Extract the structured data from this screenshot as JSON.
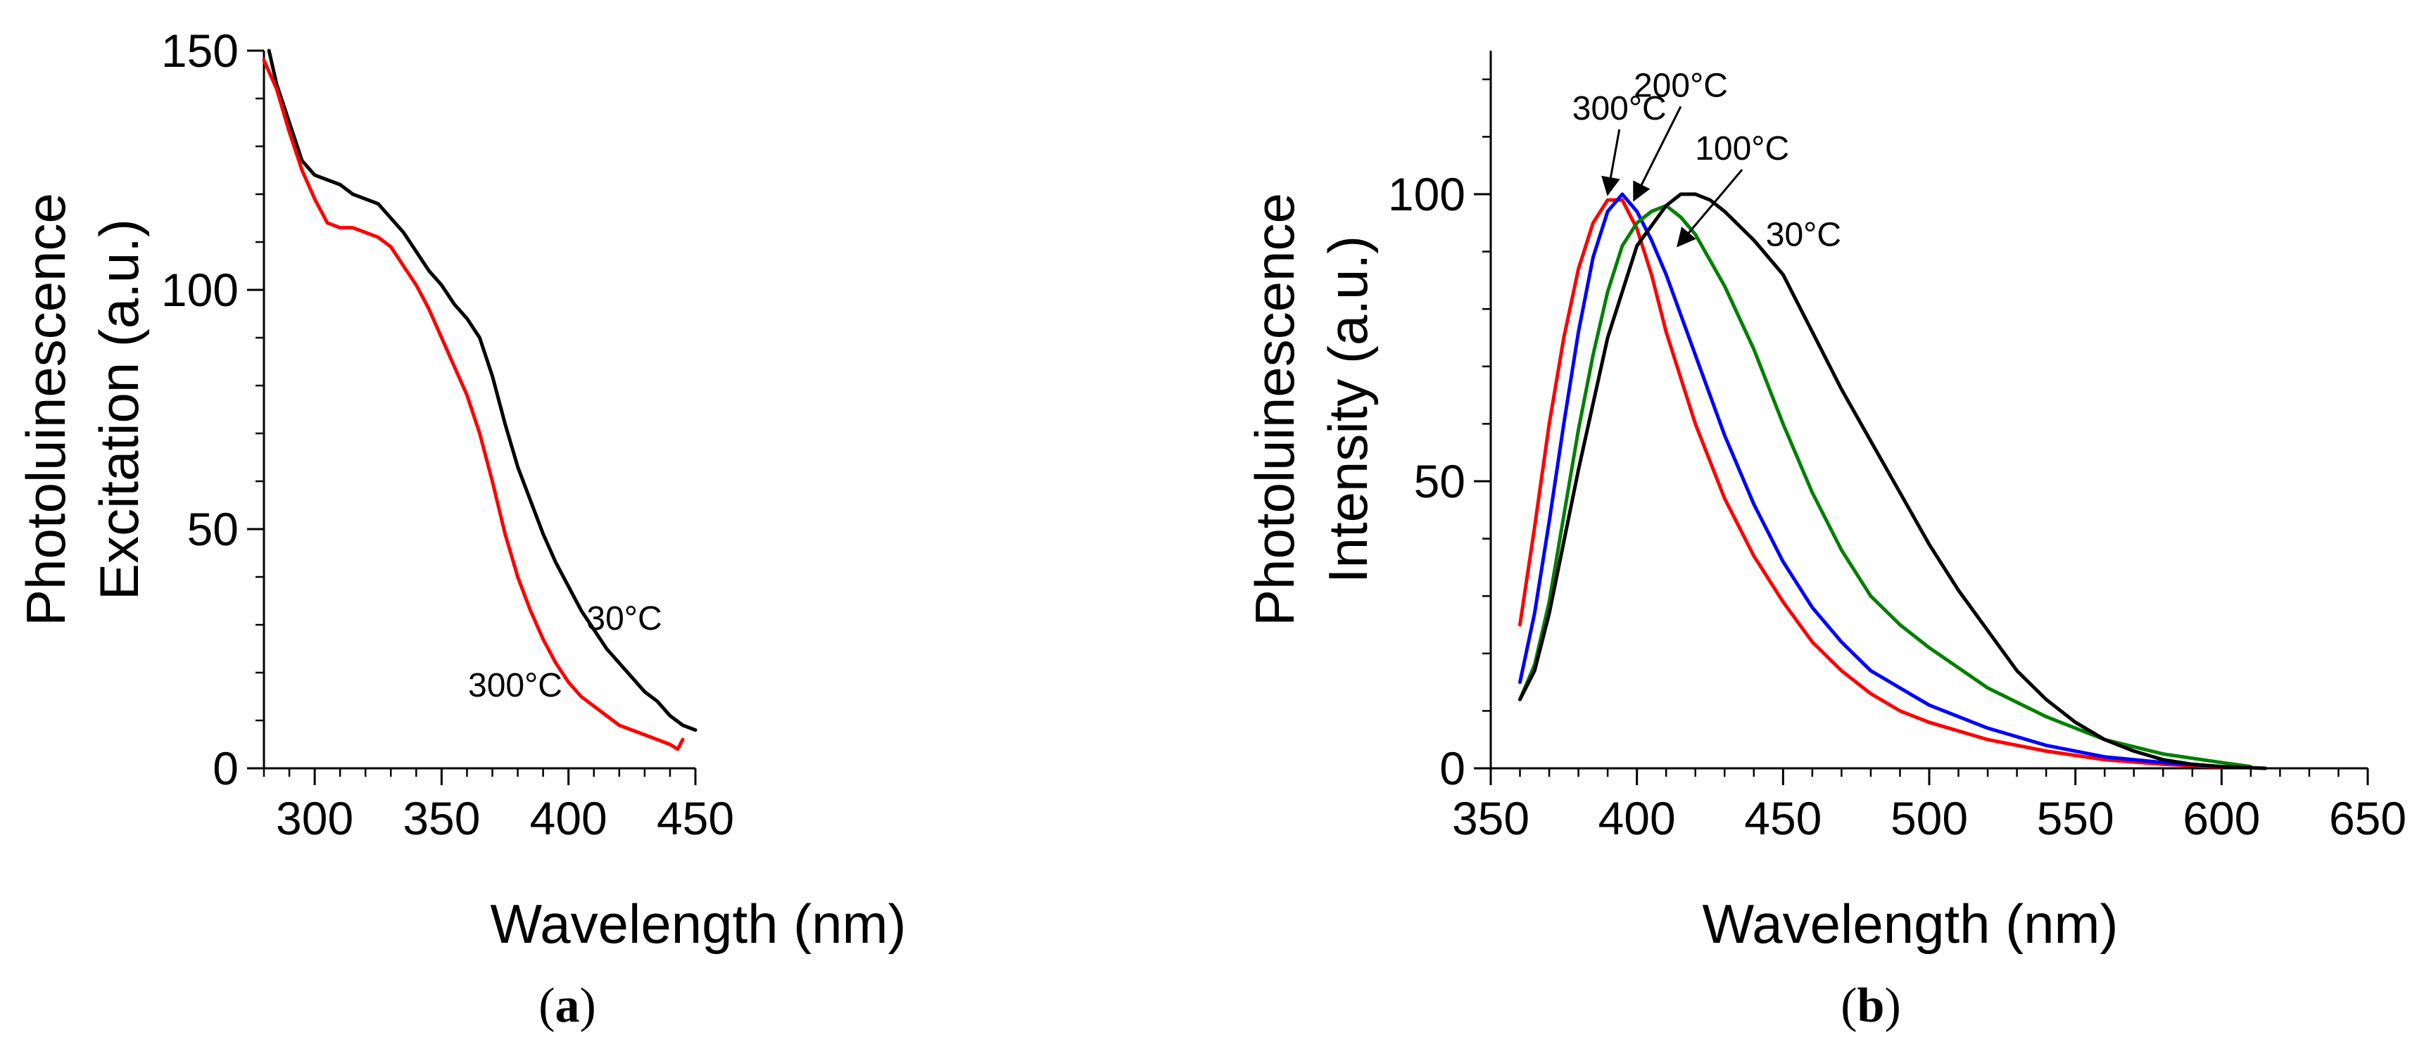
{
  "chart_data": [
    {
      "type": "line",
      "panel_label": "a",
      "xlabel": "Wavelength (nm)",
      "ylabel_line1": "Photoluinescence",
      "ylabel_line2": "Excitation (a.u.)",
      "xlim": [
        280,
        450
      ],
      "ylim": [
        0,
        150
      ],
      "xticks": [
        300,
        350,
        400,
        450
      ],
      "yticks": [
        0,
        50,
        100,
        150
      ],
      "grid": false,
      "series": [
        {
          "name": "30°C",
          "color": "#000000",
          "x": [
            282,
            285,
            290,
            295,
            300,
            305,
            310,
            315,
            320,
            325,
            330,
            335,
            340,
            345,
            350,
            355,
            360,
            365,
            370,
            375,
            380,
            385,
            390,
            395,
            400,
            405,
            410,
            415,
            420,
            425,
            430,
            435,
            440,
            445,
            450
          ],
          "y": [
            150,
            143,
            135,
            127,
            124,
            123,
            122,
            120,
            119,
            118,
            115,
            112,
            108,
            104,
            101,
            97,
            94,
            90,
            82,
            72,
            63,
            56,
            49,
            43,
            38,
            33,
            29,
            25,
            22,
            19,
            16,
            14,
            11,
            9,
            8
          ]
        },
        {
          "name": "300°C",
          "color": "#ff0000",
          "x": [
            280,
            285,
            290,
            295,
            300,
            305,
            310,
            315,
            320,
            325,
            330,
            335,
            340,
            345,
            350,
            355,
            360,
            365,
            370,
            375,
            380,
            385,
            390,
            395,
            400,
            405,
            410,
            415,
            420,
            425,
            430,
            435,
            440,
            443,
            445
          ],
          "y": [
            148,
            142,
            133,
            125,
            119,
            114,
            113,
            113,
            112,
            111,
            109,
            105,
            101,
            96,
            90,
            84,
            78,
            70,
            60,
            49,
            40,
            33,
            27,
            22,
            18,
            15,
            13,
            11,
            9,
            8,
            7,
            6,
            5,
            4,
            6
          ]
        }
      ],
      "annotations": [
        {
          "text": "30°C",
          "x": 422,
          "y": 29
        },
        {
          "text": "300°C",
          "x": 379,
          "y": 15
        }
      ]
    },
    {
      "type": "line",
      "panel_label": "b",
      "xlabel": "Wavelength (nm)",
      "ylabel_line1": "Photoluinescence",
      "ylabel_line2": "Intensity (a.u.)",
      "xlim": [
        350,
        650
      ],
      "ylim": [
        0,
        125
      ],
      "xticks": [
        350,
        400,
        450,
        500,
        550,
        600,
        650
      ],
      "yticks": [
        0,
        50,
        100
      ],
      "grid": false,
      "series": [
        {
          "name": "300°C",
          "color": "#ff0000",
          "x": [
            360,
            365,
            370,
            375,
            380,
            385,
            390,
            395,
            400,
            405,
            410,
            420,
            430,
            440,
            450,
            460,
            470,
            480,
            490,
            500,
            520,
            540,
            560,
            580,
            600
          ],
          "y": [
            25,
            42,
            60,
            75,
            87,
            95,
            99,
            99,
            94,
            86,
            76,
            60,
            47,
            37,
            29,
            22,
            17,
            13,
            10,
            8,
            5,
            3,
            1.5,
            0.7,
            0.2
          ]
        },
        {
          "name": "200°C",
          "color": "#0000ff",
          "x": [
            360,
            365,
            370,
            375,
            380,
            385,
            390,
            395,
            400,
            405,
            410,
            420,
            430,
            440,
            450,
            460,
            470,
            480,
            490,
            500,
            520,
            540,
            560,
            580,
            600
          ],
          "y": [
            15,
            27,
            43,
            60,
            76,
            89,
            97,
            100,
            97,
            92,
            86,
            72,
            58,
            46,
            36,
            28,
            22,
            17,
            14,
            11,
            7,
            4,
            2,
            1,
            0.3
          ]
        },
        {
          "name": "100°C",
          "color": "#008000",
          "x": [
            360,
            365,
            370,
            375,
            380,
            385,
            390,
            395,
            400,
            405,
            410,
            415,
            420,
            430,
            440,
            450,
            460,
            470,
            480,
            490,
            500,
            520,
            540,
            560,
            580,
            600,
            610
          ],
          "y": [
            12,
            18,
            29,
            44,
            59,
            72,
            83,
            91,
            95,
            97,
            98,
            96,
            93,
            84,
            73,
            60,
            48,
            38,
            30,
            25,
            21,
            14,
            9,
            5,
            2.5,
            1,
            0.3
          ]
        },
        {
          "name": "30°C",
          "color": "#000000",
          "x": [
            360,
            365,
            370,
            380,
            390,
            400,
            410,
            415,
            420,
            425,
            430,
            440,
            450,
            460,
            470,
            480,
            490,
            500,
            510,
            520,
            530,
            540,
            550,
            560,
            570,
            580,
            590,
            600,
            615
          ],
          "y": [
            12,
            17,
            27,
            52,
            75,
            91,
            98,
            100,
            100,
            99,
            97,
            92,
            86,
            76,
            66,
            57,
            48,
            39,
            31,
            24,
            17,
            12,
            8,
            5,
            3,
            1.5,
            0.7,
            0.3,
            0
          ]
        }
      ],
      "annotations": [
        {
          "text": "300°C",
          "x": 394,
          "y": 113,
          "arrow_to": [
            390,
            100
          ]
        },
        {
          "text": "200°C",
          "x": 415,
          "y": 117,
          "arrow_to": [
            399,
            99
          ]
        },
        {
          "text": "100°C",
          "x": 436,
          "y": 106,
          "arrow_to": [
            414,
            91
          ]
        },
        {
          "text": "30°C",
          "x": 457,
          "y": 91
        }
      ]
    }
  ]
}
